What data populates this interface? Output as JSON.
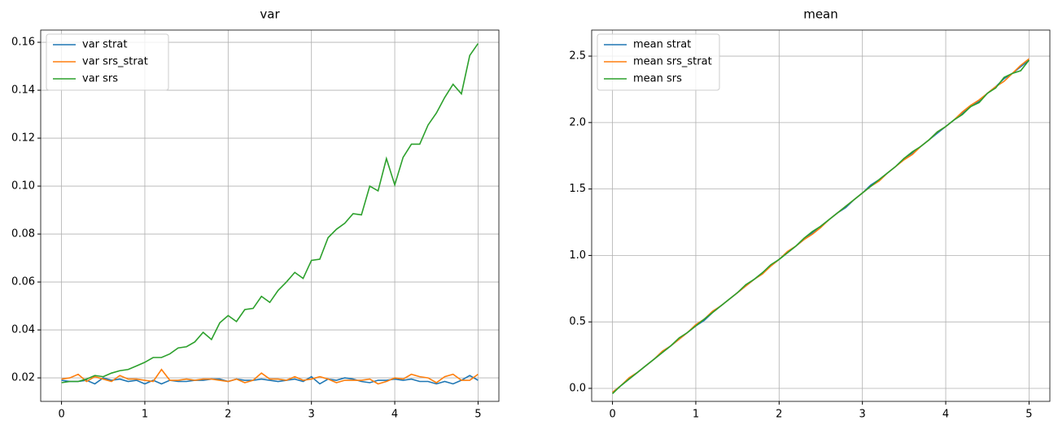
{
  "chart_data": [
    {
      "type": "line",
      "title": "var",
      "grid": true,
      "legend": "upper left",
      "x": [
        0,
        0.1,
        0.2,
        0.3,
        0.4,
        0.5,
        0.6,
        0.7,
        0.8,
        0.9,
        1,
        1.1,
        1.2,
        1.3,
        1.4,
        1.5,
        1.6,
        1.7,
        1.8,
        1.9,
        2,
        2.1,
        2.2,
        2.3,
        2.4,
        2.5,
        2.6,
        2.7,
        2.8,
        2.9,
        3,
        3.1,
        3.2,
        3.3,
        3.4,
        3.5,
        3.6,
        3.7,
        3.8,
        3.9,
        4,
        4.1,
        4.2,
        4.3,
        4.4,
        4.5,
        4.6,
        4.7,
        4.8,
        4.9,
        5
      ],
      "xlim": [
        -0.25,
        5.25
      ],
      "xticks": [
        0,
        1,
        2,
        3,
        4,
        5
      ],
      "ylim": [
        0.0102,
        0.1651
      ],
      "yticks": [
        0.02,
        0.04,
        0.06,
        0.08,
        {
          "value": 0.1,
          "label": "0.10"
        },
        0.12,
        0.14,
        0.16
      ],
      "series": [
        {
          "name": "var strat",
          "color": "#1f77b4",
          "values": [
            0.019,
            0.0185,
            0.0185,
            0.019,
            0.0175,
            0.02,
            0.019,
            0.0195,
            0.0185,
            0.019,
            0.0175,
            0.019,
            0.0175,
            0.019,
            0.0185,
            0.0185,
            0.019,
            0.019,
            0.0195,
            0.0195,
            0.0185,
            0.0195,
            0.019,
            0.019,
            0.0195,
            0.019,
            0.0185,
            0.019,
            0.0195,
            0.0185,
            0.0205,
            0.0175,
            0.0195,
            0.019,
            0.02,
            0.0195,
            0.0185,
            0.018,
            0.019,
            0.019,
            0.0195,
            0.019,
            0.0195,
            0.0185,
            0.0185,
            0.0175,
            0.0185,
            0.0175,
            0.019,
            0.021,
            0.019
          ]
        },
        {
          "name": "var srs_strat",
          "color": "#ff7f0e",
          "values": [
            0.0195,
            0.02,
            0.0215,
            0.0185,
            0.0205,
            0.0195,
            0.0185,
            0.021,
            0.0195,
            0.0195,
            0.019,
            0.0185,
            0.0235,
            0.019,
            0.019,
            0.0195,
            0.019,
            0.0195,
            0.0195,
            0.019,
            0.0185,
            0.0195,
            0.018,
            0.019,
            0.022,
            0.0195,
            0.0195,
            0.019,
            0.0205,
            0.019,
            0.0195,
            0.0205,
            0.0195,
            0.018,
            0.019,
            0.019,
            0.019,
            0.0195,
            0.0175,
            0.0185,
            0.02,
            0.0195,
            0.0215,
            0.0205,
            0.02,
            0.018,
            0.0205,
            0.0215,
            0.019,
            0.019,
            0.0215
          ]
        },
        {
          "name": "var srs",
          "color": "#2ca02c",
          "values": [
            0.018,
            0.0185,
            0.0185,
            0.0195,
            0.021,
            0.0205,
            0.022,
            0.023,
            0.0235,
            0.025,
            0.0265,
            0.0285,
            0.0285,
            0.03,
            0.0325,
            0.033,
            0.035,
            0.039,
            0.036,
            0.043,
            0.046,
            0.0435,
            0.0485,
            0.049,
            0.054,
            0.0515,
            0.0565,
            0.06,
            0.064,
            0.0615,
            0.069,
            0.0695,
            0.0785,
            0.082,
            0.0845,
            0.0885,
            0.088,
            0.1,
            0.098,
            0.1115,
            0.1005,
            0.112,
            0.1175,
            0.1175,
            0.1255,
            0.1305,
            0.137,
            0.1425,
            0.1385,
            0.1545,
            0.1595
          ]
        }
      ]
    },
    {
      "type": "line",
      "title": "mean",
      "grid": true,
      "legend": "upper left",
      "x": [
        0,
        0.1,
        0.2,
        0.3,
        0.4,
        0.5,
        0.6,
        0.7,
        0.8,
        0.9,
        1,
        1.1,
        1.2,
        1.3,
        1.4,
        1.5,
        1.6,
        1.7,
        1.8,
        1.9,
        2,
        2.1,
        2.2,
        2.3,
        2.4,
        2.5,
        2.6,
        2.7,
        2.8,
        2.9,
        3,
        3.1,
        3.2,
        3.3,
        3.4,
        3.5,
        3.6,
        3.7,
        3.8,
        3.9,
        4,
        4.1,
        4.2,
        4.3,
        4.4,
        4.5,
        4.6,
        4.7,
        4.8,
        4.9,
        5
      ],
      "xlim": [
        -0.25,
        5.25
      ],
      "xticks": [
        0,
        1,
        2,
        3,
        4,
        5
      ],
      "ylim": [
        -0.098,
        2.696
      ],
      "yticks": [
        {
          "value": 0,
          "label": "0.0"
        },
        0.5,
        {
          "value": 1,
          "label": "1.0"
        },
        1.5,
        {
          "value": 2,
          "label": "2.0"
        },
        2.5
      ],
      "series": [
        {
          "name": "mean strat",
          "color": "#1f77b4",
          "values": [
            -0.03,
            0.02,
            0.07,
            0.12,
            0.17,
            0.22,
            0.27,
            0.32,
            0.37,
            0.42,
            0.47,
            0.51,
            0.57,
            0.62,
            0.67,
            0.72,
            0.77,
            0.82,
            0.87,
            0.92,
            0.97,
            1.02,
            1.07,
            1.12,
            1.17,
            1.22,
            1.27,
            1.32,
            1.36,
            1.42,
            1.47,
            1.53,
            1.57,
            1.62,
            1.67,
            1.73,
            1.77,
            1.82,
            1.87,
            1.92,
            1.97,
            2.02,
            2.07,
            2.12,
            2.16,
            2.22,
            2.27,
            2.33,
            2.37,
            2.42,
            2.47
          ]
        },
        {
          "name": "mean srs_strat",
          "color": "#ff7f0e",
          "values": [
            -0.03,
            0.02,
            0.08,
            0.12,
            0.17,
            0.22,
            0.28,
            0.32,
            0.37,
            0.42,
            0.48,
            0.52,
            0.58,
            0.62,
            0.67,
            0.72,
            0.77,
            0.82,
            0.86,
            0.92,
            0.97,
            1.03,
            1.07,
            1.12,
            1.16,
            1.21,
            1.27,
            1.32,
            1.37,
            1.42,
            1.47,
            1.52,
            1.56,
            1.62,
            1.67,
            1.72,
            1.76,
            1.82,
            1.87,
            1.93,
            1.97,
            2.02,
            2.08,
            2.13,
            2.17,
            2.22,
            2.27,
            2.31,
            2.37,
            2.43,
            2.48
          ]
        },
        {
          "name": "mean srs",
          "color": "#2ca02c",
          "values": [
            -0.04,
            0.02,
            0.07,
            0.12,
            0.17,
            0.22,
            0.27,
            0.32,
            0.38,
            0.42,
            0.47,
            0.52,
            0.57,
            0.62,
            0.67,
            0.72,
            0.78,
            0.82,
            0.87,
            0.93,
            0.97,
            1.02,
            1.07,
            1.13,
            1.18,
            1.22,
            1.27,
            1.32,
            1.37,
            1.42,
            1.47,
            1.52,
            1.57,
            1.62,
            1.67,
            1.73,
            1.78,
            1.82,
            1.87,
            1.93,
            1.97,
            2.02,
            2.06,
            2.12,
            2.15,
            2.22,
            2.26,
            2.34,
            2.37,
            2.39,
            2.47
          ]
        }
      ]
    }
  ]
}
